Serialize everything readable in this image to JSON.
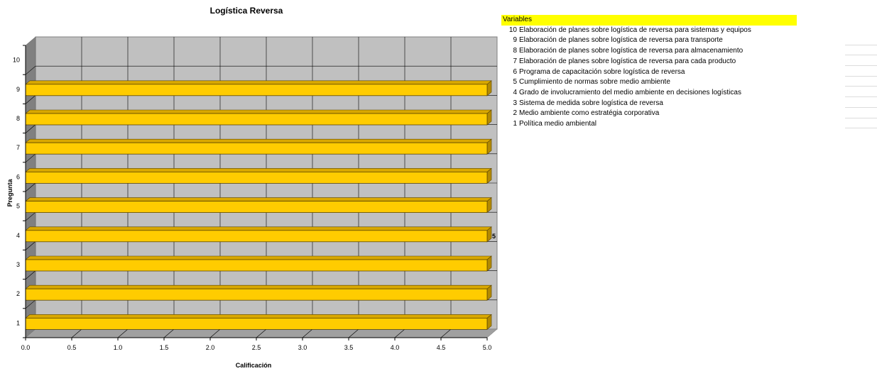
{
  "chart_data": {
    "type": "bar",
    "orientation": "horizontal",
    "title": "Logística Reversa",
    "xlabel": "Calificación",
    "ylabel": "Pregunta",
    "categories": [
      "1",
      "2",
      "3",
      "4",
      "5",
      "6",
      "7",
      "8",
      "9",
      "10"
    ],
    "values": [
      5,
      5,
      5,
      5,
      5,
      5,
      5,
      5,
      5,
      null
    ],
    "xlim": [
      0,
      5
    ],
    "x_ticks": [
      "0.0",
      "0.5",
      "1.0",
      "1.5",
      "2.0",
      "2.5",
      "3.0",
      "3.5",
      "4.0",
      "4.5",
      "5.0"
    ],
    "data_labels": [
      {
        "category": "4",
        "text": "5"
      }
    ],
    "grid": true,
    "style": "3d",
    "bar_color": "#ffcc00"
  },
  "legend": {
    "header": "Variables",
    "header_color": "#ffff00",
    "items": [
      {
        "num": "10",
        "text": "Elaboración de planes sobre logística de reversa para sistemas y equipos"
      },
      {
        "num": "9",
        "text": "Elaboración de planes sobre logística de reversa para transporte"
      },
      {
        "num": "8",
        "text": "Elaboración de planes sobre logística de reversa para almacenamiento"
      },
      {
        "num": "7",
        "text": "Elaboración de planes sobre logística de reversa para cada producto"
      },
      {
        "num": "6",
        "text": "Programa de capacitación sobre logística de reversa"
      },
      {
        "num": "5",
        "text": "Cumplimiento de normas sobre medio ambiente"
      },
      {
        "num": "4",
        "text": "Grado de involucramiento del medio ambiente en decisiones logísticas"
      },
      {
        "num": "3",
        "text": "Sistema de medida sobre logística de reversa"
      },
      {
        "num": "2",
        "text": "Medio ambiente como estratégia corporativa"
      },
      {
        "num": "1",
        "text": "Política medio ambiental"
      }
    ]
  }
}
